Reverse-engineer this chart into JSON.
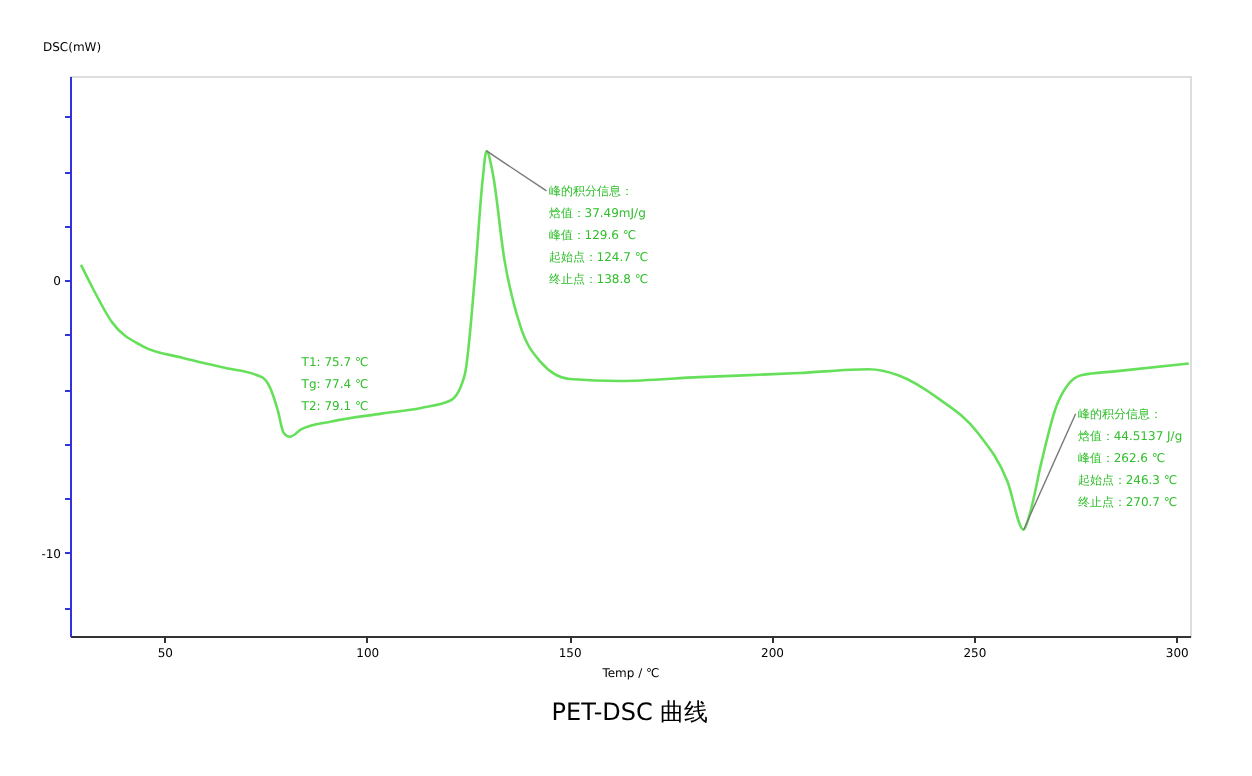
{
  "chart_data": {
    "type": "line",
    "title": "PET-DSC 曲线",
    "xlabel": "Temp / ℃",
    "ylabel": "DSC(mW)",
    "x": [
      29.4,
      32.3,
      37.2,
      44.6,
      54.4,
      64.3,
      74.1,
      76.0,
      78.0,
      79.5,
      81.0,
      83.9,
      91.3,
      103.6,
      113.4,
      120.8,
      124.2,
      126.7,
      128.6,
      129.6,
      131.1,
      134.0,
      138.0,
      142.9,
      150.2,
      162.5,
      182.2,
      206.8,
      224.0,
      231.3,
      241.2,
      251.0,
      258.3,
      262.3,
      263.8,
      266.7,
      270.6,
      276.5,
      285.4,
      303.1
    ],
    "series": [
      {
        "color": "#66e05a",
        "values": [
          0.57,
          -0.28,
          -1.56,
          -2.41,
          -2.84,
          -3.19,
          -3.55,
          -3.9,
          -4.75,
          -5.6,
          -5.74,
          -5.46,
          -5.18,
          -4.89,
          -4.68,
          -4.4,
          -3.48,
          0.07,
          3.62,
          4.75,
          3.97,
          0.78,
          -1.7,
          -2.98,
          -3.62,
          -3.69,
          -3.55,
          -3.4,
          -3.26,
          -3.48,
          -4.33,
          -5.6,
          -7.38,
          -9.15,
          -8.58,
          -6.67,
          -4.54,
          -3.48,
          -3.33,
          -3.05
        ]
      }
    ],
    "xlim": [
      26.7,
      303.4
    ],
    "ylim": [
      -13.05,
      7.5
    ],
    "xticks": [
      50,
      100,
      150,
      200,
      250,
      300
    ],
    "yticks": [
      {
        "value": -12,
        "label": null
      },
      -10,
      {
        "value": -8,
        "label": null
      },
      {
        "value": -6,
        "label": null
      },
      {
        "value": -4,
        "label": null
      },
      {
        "value": -2,
        "label": null
      },
      0,
      {
        "value": 2,
        "label": null
      },
      {
        "value": 4,
        "label": null
      },
      {
        "value": 6,
        "label": null
      }
    ],
    "annotations": [
      "T1:  75.7 ℃",
      "Tg:  77.4 ℃",
      "T2:  79.1 ℃",
      {
        "text": "峰的积分信息：",
        "x": 129.6,
        "y": 4.75
      },
      "焓值：37.49mJ/g",
      "峰值：129.6 ℃",
      "起始点：124.7 ℃",
      "终止点：138.8 ℃",
      {
        "text": "峰的积分信息：",
        "x": 262.3,
        "y": -9.15
      },
      "焓值：44.5137 J/g",
      "峰值：262.6 ℃",
      "起始点：246.3 ℃",
      "终止点：270.7 ℃"
    ],
    "grid": false,
    "marker": "none",
    "line_style": "solid"
  }
}
